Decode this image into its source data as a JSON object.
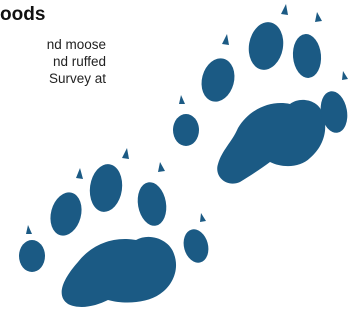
{
  "heading": "oods",
  "lines": [
    "nd moose",
    "nd ruffed",
    "Survey at"
  ]
}
